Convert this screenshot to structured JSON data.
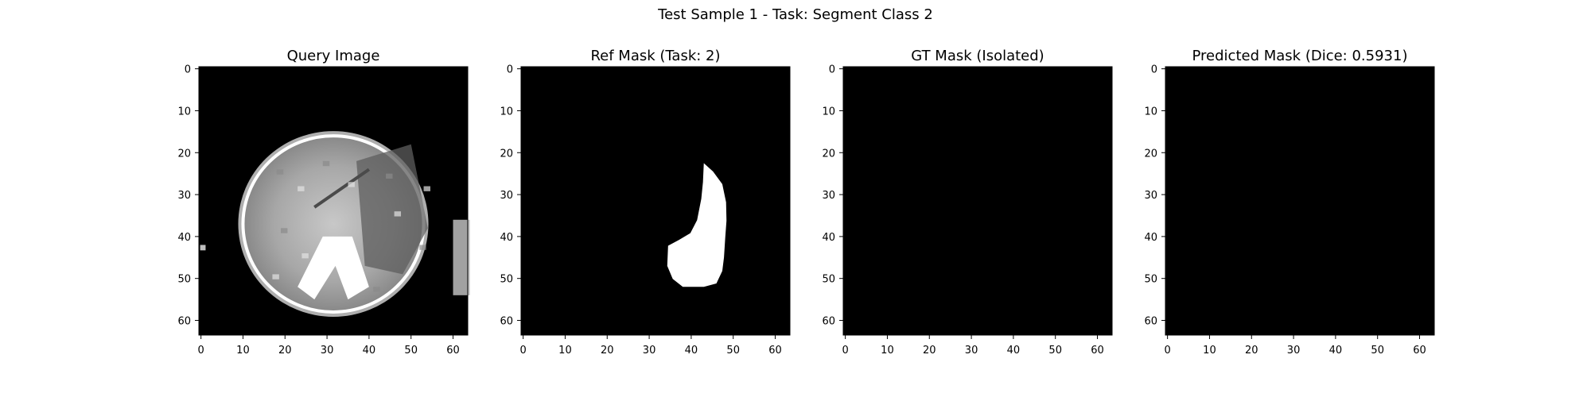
{
  "figure": {
    "title": "Test Sample 1 - Task: Segment Class 2"
  },
  "panels": [
    {
      "id": "query",
      "title": "Query Image",
      "kind": "ct-slice"
    },
    {
      "id": "ref",
      "title": "Ref Mask (Task: 2)",
      "kind": "mask-blob"
    },
    {
      "id": "gt",
      "title": "GT Mask (Isolated)",
      "kind": "empty"
    },
    {
      "id": "pred",
      "title": "Predicted Mask (Dice: 0.5931)",
      "kind": "empty"
    }
  ],
  "axes": {
    "x_ticks": [
      "0",
      "10",
      "20",
      "30",
      "40",
      "50",
      "60"
    ],
    "y_ticks": [
      "0",
      "10",
      "20",
      "30",
      "40",
      "50",
      "60"
    ],
    "x_range": [
      -0.5,
      63.5
    ],
    "y_range": [
      -0.5,
      63.5
    ],
    "grid": false
  },
  "colors": {
    "background": "#000000",
    "mask": "#ffffff",
    "axis": "#000000",
    "page": "#ffffff"
  }
}
